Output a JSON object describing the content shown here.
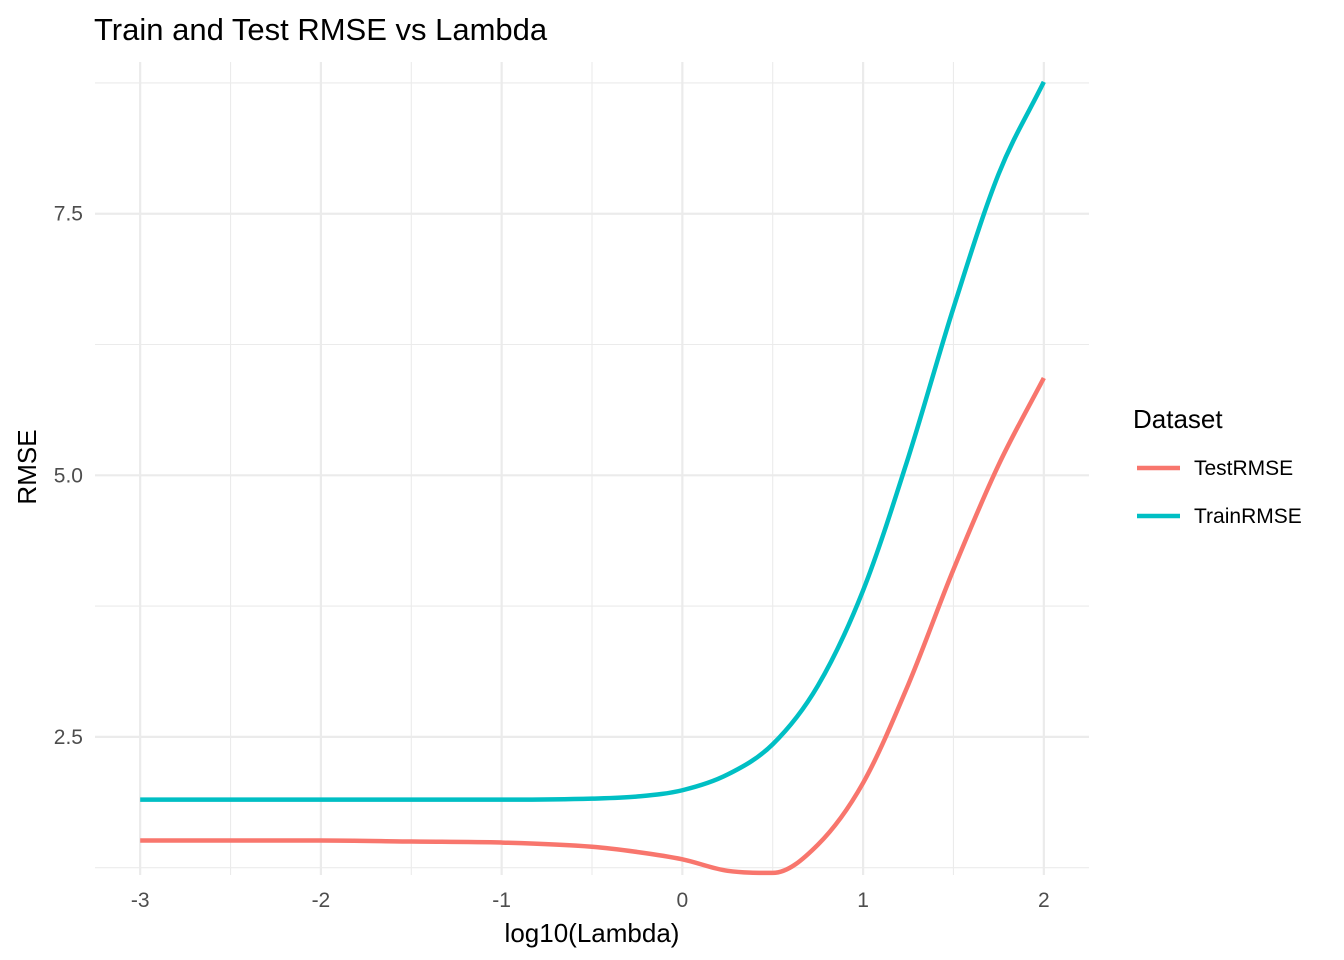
{
  "chart_data": {
    "type": "line",
    "title": "Train and Test RMSE vs Lambda",
    "xlabel": "log10(Lambda)",
    "ylabel": "RMSE",
    "xlim": [
      -3.25,
      2.25
    ],
    "ylim": [
      1.18,
      8.95
    ],
    "x_ticks": [
      -3,
      -2,
      -1,
      0,
      1,
      2
    ],
    "x_tick_labels": [
      "-3",
      "-2",
      "-1",
      "0",
      "1",
      "2"
    ],
    "y_ticks": [
      2.5,
      5.0,
      7.5
    ],
    "y_tick_labels": [
      "2.5",
      "5.0",
      "7.5"
    ],
    "grid": true,
    "legend": {
      "title": "Dataset",
      "position": "right"
    },
    "x": [
      -3.0,
      -2.5,
      -2.0,
      -1.5,
      -1.0,
      -0.5,
      -0.25,
      0.0,
      0.25,
      0.5,
      0.75,
      1.0,
      1.25,
      1.5,
      1.75,
      2.0
    ],
    "series": [
      {
        "name": "TestRMSE",
        "color": "#F8766D",
        "values": [
          1.51,
          1.51,
          1.51,
          1.5,
          1.49,
          1.45,
          1.4,
          1.33,
          1.22,
          1.2,
          1.47,
          2.06,
          3.0,
          4.1,
          5.1,
          5.93
        ]
      },
      {
        "name": "TrainRMSE",
        "color": "#00BFC4",
        "values": [
          1.9,
          1.9,
          1.9,
          1.9,
          1.9,
          1.91,
          1.93,
          1.99,
          2.14,
          2.43,
          2.99,
          3.9,
          5.17,
          6.6,
          7.88,
          8.76
        ]
      }
    ]
  }
}
